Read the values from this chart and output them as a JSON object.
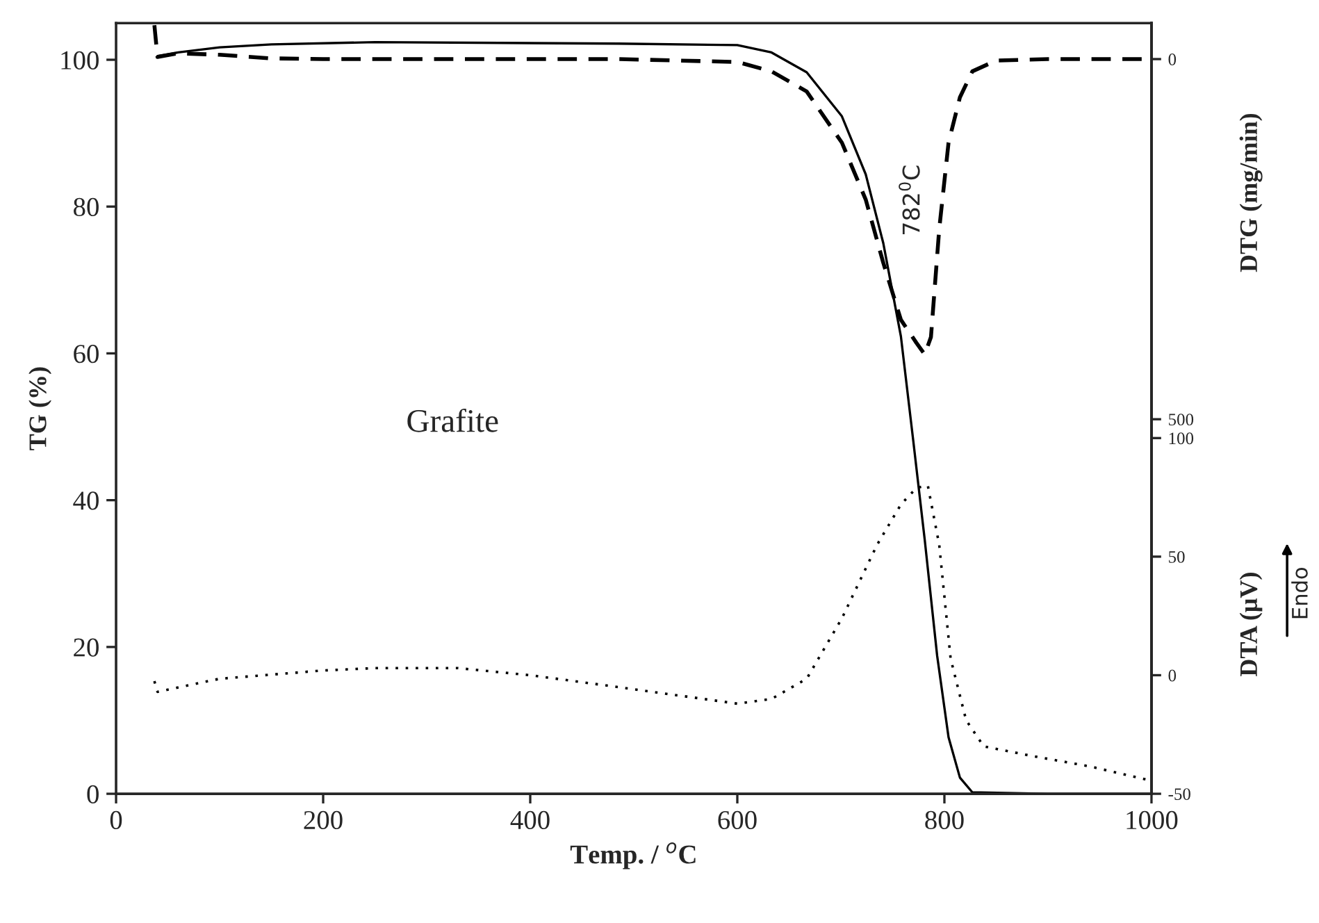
{
  "chart_data": {
    "type": "line",
    "xlabel": "Temp. / $^{o}$C",
    "ylabel": "TG (%)",
    "y2label": "DTA (μV)",
    "y3label": "DTG (mg/min)",
    "xlim": [
      0,
      1000
    ],
    "xticks": [
      0,
      200,
      400,
      600,
      800,
      1000
    ],
    "ylim": [
      0,
      105
    ],
    "yticks": [
      0,
      20,
      40,
      60,
      80,
      100
    ],
    "y2lim": [
      -50,
      275
    ],
    "y2ticks": [
      -50,
      0,
      50,
      100
    ],
    "y3lim": [
      1020,
      -50
    ],
    "y3ticks": [
      0,
      500
    ],
    "grid": false,
    "legend": false,
    "marker": "none",
    "annotations": [
      {
        "text": "Grafite"
      },
      "782$^{0}$C",
      {
        "text": "Endo"
      }
    ],
    "series": [
      {
        "color": "#000000",
        "line_style": "solid",
        "x": [
          40,
          60,
          100,
          150,
          250,
          485,
          600,
          633,
          667,
          701,
          724,
          741,
          758,
          770,
          781,
          793,
          804,
          815,
          827,
          900,
          1000
        ],
        "values": [
          100.5,
          101,
          101.7,
          102.1,
          102.4,
          102.2,
          102,
          101,
          98.3,
          92.3,
          84.4,
          75,
          62.3,
          48,
          34.6,
          18.8,
          7.7,
          2.2,
          0.2,
          0,
          0
        ]
      },
      {
        "color": "#000000",
        "line_style": "dashed",
        "axis": "y3",
        "x": [
          37,
          40,
          60,
          100,
          150,
          200,
          485,
          600,
          633,
          667,
          701,
          724,
          741,
          758,
          773,
          781,
          787,
          795,
          804,
          815,
          827,
          850,
          900,
          1000
        ],
        "values": [
          -47,
          -3,
          -8,
          -6,
          -1,
          0,
          0,
          4,
          17,
          45,
          116,
          195,
          283,
          362,
          394,
          410,
          386,
          236,
          116,
          53,
          17,
          2,
          0,
          0
        ]
      },
      {
        "color": "#000000",
        "line_style": "dotted",
        "axis": "y2",
        "x": [
          37,
          40,
          100,
          200,
          250,
          330,
          400,
          485,
          600,
          633,
          667,
          701,
          735,
          758,
          773,
          784,
          795,
          806,
          821,
          838,
          884,
          941,
          1000
        ],
        "values": [
          -2.5,
          -7,
          -1.5,
          2,
          3,
          3,
          0,
          -5,
          -12,
          -10,
          -1.5,
          24,
          55,
          72,
          79,
          80,
          55,
          7,
          -19,
          -30,
          -34,
          -38.5,
          -44.5
        ]
      }
    ]
  }
}
